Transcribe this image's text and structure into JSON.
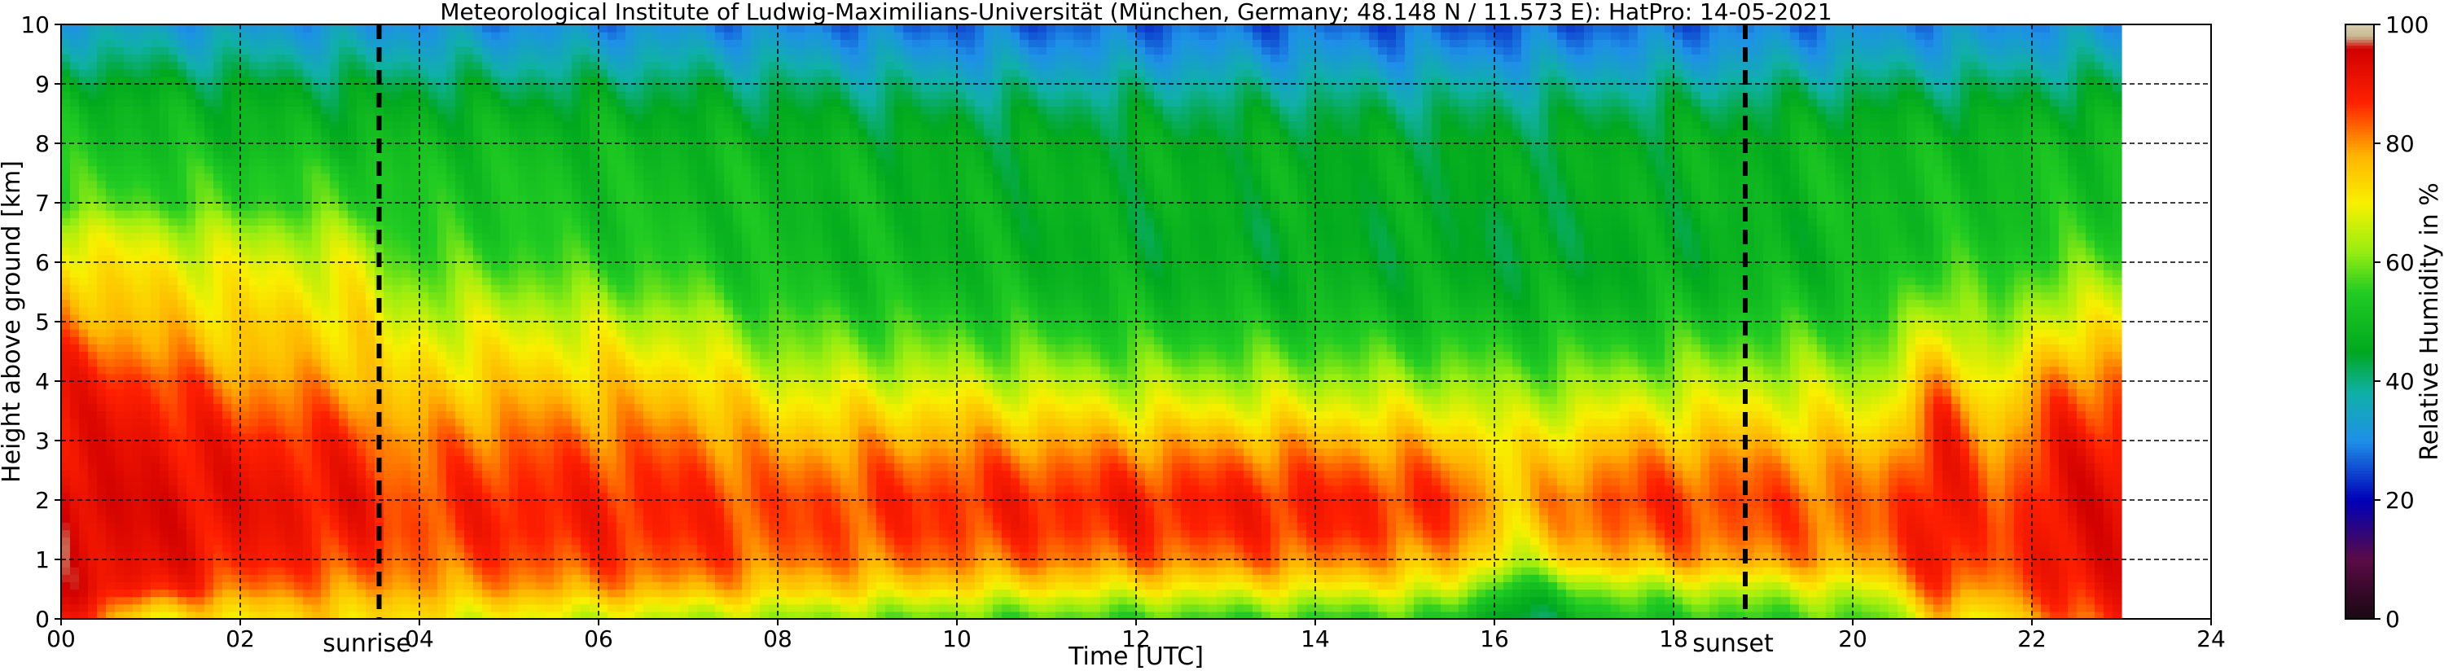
{
  "chart_data": {
    "type": "heatmap",
    "title": "Meteorological Institute of Ludwig-Maximilians-Universität (München, Germany; 48.148 N / 11.573 E):    HatPro: 14-05-2021",
    "xlabel": "Time [UTC]",
    "ylabel": "Height above ground [km]",
    "colorbar_label": "Relative Humidity in %",
    "xlim": [
      0,
      24
    ],
    "ylim": [
      0,
      10
    ],
    "clim": [
      0,
      100
    ],
    "x_ticks": [
      "00",
      "02",
      "04",
      "06",
      "08",
      "10",
      "12",
      "14",
      "16",
      "18",
      "20",
      "22",
      "24"
    ],
    "y_ticks": [
      "0",
      "1",
      "2",
      "3",
      "4",
      "5",
      "6",
      "7",
      "8",
      "9",
      "10"
    ],
    "colorbar_ticks": [
      "0",
      "20",
      "40",
      "60",
      "80",
      "100"
    ],
    "grid": true,
    "data_extent_hours": [
      0,
      23
    ],
    "events": [
      {
        "label": "sunrise",
        "time_h": 3.55
      },
      {
        "label": "sunset",
        "time_h": 18.8
      }
    ],
    "colormap": [
      {
        "value": 0,
        "color": "#1a0a14"
      },
      {
        "value": 3,
        "color": "#2b0820"
      },
      {
        "value": 10,
        "color": "#5a0b45"
      },
      {
        "value": 20,
        "color": "#0000b8"
      },
      {
        "value": 30,
        "color": "#1e90e8"
      },
      {
        "value": 38,
        "color": "#10b0a8"
      },
      {
        "value": 45,
        "color": "#00a81e"
      },
      {
        "value": 55,
        "color": "#22cc22"
      },
      {
        "value": 62,
        "color": "#9aee10"
      },
      {
        "value": 70,
        "color": "#f8f000"
      },
      {
        "value": 78,
        "color": "#ffb400"
      },
      {
        "value": 87,
        "color": "#ff2000"
      },
      {
        "value": 96,
        "color": "#d00000"
      },
      {
        "value": 98,
        "color": "#c8b890"
      },
      {
        "value": 100,
        "color": "#d8d0b0"
      }
    ],
    "rh_profiles_percent": {
      "heights_km": [
        0.0,
        0.25,
        0.5,
        0.75,
        1.0,
        1.5,
        2.0,
        2.5,
        3.0,
        3.5,
        4.0,
        4.5,
        5.0,
        5.5,
        6.0,
        6.5,
        7.0,
        7.5,
        8.0,
        8.5,
        9.0,
        9.5,
        10.0
      ],
      "profiles": [
        {
          "time_h": 0.0,
          "rh": [
            90,
            92,
            93,
            93,
            93,
            94,
            95,
            93,
            92,
            91,
            89,
            86,
            80,
            77,
            73,
            68,
            58,
            55,
            52,
            50,
            46,
            40,
            34
          ]
        },
        {
          "time_h": 1.0,
          "rh": [
            70,
            78,
            88,
            91,
            92,
            93,
            93,
            92,
            91,
            89,
            86,
            80,
            76,
            73,
            70,
            65,
            57,
            54,
            51,
            49,
            45,
            39,
            33
          ]
        },
        {
          "time_h": 2.0,
          "rh": [
            72,
            76,
            82,
            85,
            88,
            90,
            91,
            90,
            88,
            84,
            80,
            76,
            74,
            71,
            68,
            63,
            56,
            54,
            50,
            48,
            44,
            38,
            32
          ]
        },
        {
          "time_h": 3.4,
          "rh": [
            74,
            76,
            80,
            83,
            86,
            89,
            90,
            88,
            86,
            82,
            78,
            75,
            73,
            70,
            67,
            62,
            56,
            54,
            50,
            47,
            43,
            37,
            31
          ]
        },
        {
          "time_h": 3.7,
          "rh": [
            72,
            74,
            78,
            80,
            82,
            84,
            84,
            82,
            80,
            76,
            73,
            70,
            66,
            62,
            58,
            55,
            53,
            52,
            50,
            47,
            43,
            37,
            31
          ]
        },
        {
          "time_h": 5.0,
          "rh": [
            68,
            73,
            79,
            82,
            85,
            88,
            88,
            86,
            83,
            79,
            75,
            71,
            67,
            62,
            57,
            54,
            53,
            52,
            50,
            47,
            42,
            36,
            30
          ]
        },
        {
          "time_h": 7.0,
          "rh": [
            64,
            70,
            78,
            82,
            85,
            87,
            87,
            85,
            82,
            78,
            74,
            69,
            64,
            58,
            54,
            52,
            51,
            50,
            49,
            46,
            42,
            36,
            30
          ]
        },
        {
          "time_h": 8.0,
          "rh": [
            62,
            68,
            75,
            78,
            82,
            84,
            84,
            81,
            77,
            72,
            67,
            61,
            57,
            53,
            51,
            50,
            50,
            50,
            48,
            45,
            41,
            35,
            29
          ]
        },
        {
          "time_h": 10.0,
          "rh": [
            58,
            64,
            72,
            77,
            82,
            86,
            87,
            84,
            79,
            73,
            66,
            60,
            55,
            51,
            49,
            48,
            48,
            47,
            46,
            43,
            38,
            32,
            27
          ]
        },
        {
          "time_h": 12.0,
          "rh": [
            56,
            62,
            70,
            76,
            82,
            87,
            88,
            84,
            78,
            70,
            63,
            57,
            52,
            49,
            47,
            46,
            47,
            47,
            46,
            43,
            38,
            32,
            27
          ]
        },
        {
          "time_h": 14.0,
          "rh": [
            56,
            62,
            70,
            76,
            82,
            87,
            88,
            84,
            78,
            70,
            63,
            57,
            52,
            49,
            47,
            46,
            47,
            47,
            46,
            43,
            38,
            32,
            27
          ]
        },
        {
          "time_h": 15.5,
          "rh": [
            55,
            60,
            68,
            73,
            78,
            84,
            86,
            82,
            76,
            69,
            62,
            56,
            51,
            48,
            46,
            46,
            46,
            46,
            45,
            42,
            37,
            31,
            26
          ]
        },
        {
          "time_h": 16.2,
          "rh": [
            40,
            44,
            50,
            58,
            66,
            72,
            75,
            73,
            70,
            65,
            60,
            55,
            51,
            47,
            45,
            44,
            45,
            46,
            45,
            42,
            37,
            31,
            26
          ]
        },
        {
          "time_h": 17.3,
          "rh": [
            52,
            56,
            62,
            70,
            78,
            84,
            86,
            82,
            76,
            69,
            62,
            56,
            51,
            48,
            46,
            46,
            47,
            47,
            46,
            43,
            38,
            32,
            27
          ]
        },
        {
          "time_h": 18.8,
          "rh": [
            55,
            59,
            65,
            72,
            80,
            84,
            85,
            82,
            77,
            71,
            65,
            59,
            54,
            50,
            48,
            47,
            48,
            48,
            47,
            44,
            39,
            33,
            28
          ]
        },
        {
          "time_h": 20.3,
          "rh": [
            58,
            62,
            68,
            74,
            79,
            82,
            82,
            79,
            74,
            69,
            64,
            59,
            55,
            52,
            50,
            50,
            51,
            50,
            49,
            46,
            41,
            35,
            30
          ]
        },
        {
          "time_h": 21.0,
          "rh": [
            75,
            80,
            86,
            89,
            91,
            92,
            92,
            91,
            89,
            86,
            80,
            74,
            68,
            62,
            56,
            52,
            51,
            50,
            49,
            46,
            41,
            35,
            30
          ]
        },
        {
          "time_h": 21.6,
          "rh": [
            70,
            74,
            78,
            80,
            82,
            83,
            82,
            80,
            77,
            73,
            68,
            63,
            58,
            55,
            53,
            51,
            51,
            50,
            49,
            46,
            41,
            35,
            30
          ]
        },
        {
          "time_h": 22.3,
          "rh": [
            82,
            86,
            89,
            91,
            92,
            92,
            92,
            91,
            89,
            86,
            82,
            76,
            70,
            64,
            58,
            54,
            52,
            51,
            50,
            47,
            42,
            36,
            31
          ]
        },
        {
          "time_h": 23.0,
          "rh": [
            88,
            90,
            91,
            92,
            92,
            92,
            92,
            91,
            89,
            86,
            82,
            76,
            70,
            64,
            58,
            54,
            52,
            51,
            50,
            47,
            42,
            36,
            31
          ]
        }
      ]
    }
  }
}
